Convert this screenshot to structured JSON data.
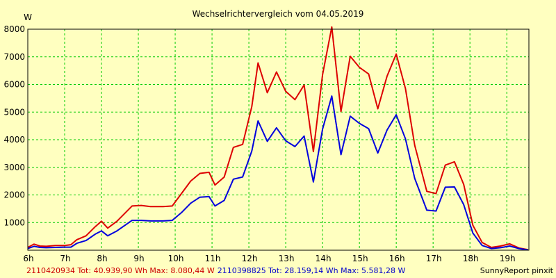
{
  "chart_data": {
    "type": "line",
    "title": "Wechselrichtervergleich vom 04.05.2019",
    "ylabel": "W",
    "ylim": [
      0,
      8000
    ],
    "y_ticks": [
      1000,
      2000,
      3000,
      4000,
      5000,
      6000,
      7000,
      8000
    ],
    "y_tick_labels": [
      "1000",
      "2000",
      "3000",
      "4000",
      "5000",
      "6000",
      "7000",
      "8000"
    ],
    "xlim": [
      6.0,
      19.6
    ],
    "x_ticks": [
      6,
      7,
      8,
      9,
      10,
      11,
      12,
      13,
      14,
      15,
      16,
      17,
      18,
      19
    ],
    "x_tick_labels": [
      "6h",
      "7h",
      "8h",
      "9h",
      "10h",
      "11h",
      "12h",
      "13h",
      "14h",
      "15h",
      "16h",
      "17h",
      "18h",
      "19h"
    ],
    "grid": true,
    "series": [
      {
        "name": "2110420934",
        "color": "#dd0000",
        "points": [
          [
            6.0,
            100
          ],
          [
            6.17,
            220
          ],
          [
            6.33,
            150
          ],
          [
            6.5,
            140
          ],
          [
            6.75,
            170
          ],
          [
            7.0,
            170
          ],
          [
            7.17,
            200
          ],
          [
            7.33,
            380
          ],
          [
            7.58,
            520
          ],
          [
            7.83,
            850
          ],
          [
            8.0,
            1050
          ],
          [
            8.17,
            800
          ],
          [
            8.42,
            1050
          ],
          [
            8.83,
            1600
          ],
          [
            9.08,
            1620
          ],
          [
            9.33,
            1580
          ],
          [
            9.67,
            1580
          ],
          [
            9.92,
            1600
          ],
          [
            10.17,
            2050
          ],
          [
            10.42,
            2500
          ],
          [
            10.67,
            2780
          ],
          [
            10.92,
            2820
          ],
          [
            11.08,
            2360
          ],
          [
            11.33,
            2650
          ],
          [
            11.58,
            3720
          ],
          [
            11.83,
            3830
          ],
          [
            12.08,
            5200
          ],
          [
            12.25,
            6780
          ],
          [
            12.5,
            5700
          ],
          [
            12.75,
            6450
          ],
          [
            13.0,
            5750
          ],
          [
            13.25,
            5450
          ],
          [
            13.5,
            5980
          ],
          [
            13.75,
            3570
          ],
          [
            14.0,
            6350
          ],
          [
            14.25,
            8080
          ],
          [
            14.5,
            5020
          ],
          [
            14.75,
            7020
          ],
          [
            15.0,
            6620
          ],
          [
            15.25,
            6380
          ],
          [
            15.5,
            5120
          ],
          [
            15.75,
            6300
          ],
          [
            16.0,
            7100
          ],
          [
            16.25,
            5850
          ],
          [
            16.5,
            3800
          ],
          [
            16.83,
            2130
          ],
          [
            17.08,
            2050
          ],
          [
            17.33,
            3080
          ],
          [
            17.58,
            3200
          ],
          [
            17.83,
            2380
          ],
          [
            18.08,
            900
          ],
          [
            18.33,
            280
          ],
          [
            18.58,
            100
          ],
          [
            18.83,
            150
          ],
          [
            19.08,
            230
          ],
          [
            19.33,
            80
          ],
          [
            19.58,
            20
          ]
        ]
      },
      {
        "name": "2110398825",
        "color": "#0000dd",
        "points": [
          [
            6.0,
            60
          ],
          [
            6.17,
            140
          ],
          [
            6.33,
            100
          ],
          [
            6.5,
            90
          ],
          [
            6.75,
            100
          ],
          [
            7.0,
            110
          ],
          [
            7.17,
            110
          ],
          [
            7.33,
            250
          ],
          [
            7.58,
            350
          ],
          [
            7.83,
            580
          ],
          [
            8.0,
            700
          ],
          [
            8.17,
            520
          ],
          [
            8.42,
            700
          ],
          [
            8.83,
            1080
          ],
          [
            9.08,
            1080
          ],
          [
            9.33,
            1060
          ],
          [
            9.67,
            1060
          ],
          [
            9.92,
            1080
          ],
          [
            10.17,
            1360
          ],
          [
            10.42,
            1700
          ],
          [
            10.67,
            1920
          ],
          [
            10.92,
            1940
          ],
          [
            11.08,
            1600
          ],
          [
            11.33,
            1800
          ],
          [
            11.58,
            2570
          ],
          [
            11.83,
            2650
          ],
          [
            12.08,
            3590
          ],
          [
            12.25,
            4680
          ],
          [
            12.5,
            3940
          ],
          [
            12.75,
            4430
          ],
          [
            13.0,
            3960
          ],
          [
            13.25,
            3750
          ],
          [
            13.5,
            4130
          ],
          [
            13.75,
            2470
          ],
          [
            14.0,
            4380
          ],
          [
            14.25,
            5581
          ],
          [
            14.5,
            3460
          ],
          [
            14.75,
            4850
          ],
          [
            15.0,
            4590
          ],
          [
            15.25,
            4400
          ],
          [
            15.5,
            3520
          ],
          [
            15.75,
            4350
          ],
          [
            16.0,
            4900
          ],
          [
            16.25,
            4030
          ],
          [
            16.5,
            2600
          ],
          [
            16.83,
            1450
          ],
          [
            17.08,
            1420
          ],
          [
            17.33,
            2280
          ],
          [
            17.58,
            2290
          ],
          [
            17.83,
            1650
          ],
          [
            18.08,
            620
          ],
          [
            18.33,
            170
          ],
          [
            18.58,
            60
          ],
          [
            18.83,
            90
          ],
          [
            19.08,
            150
          ],
          [
            19.33,
            60
          ],
          [
            19.58,
            10
          ]
        ]
      }
    ]
  },
  "footer": {
    "red_text": "2110420934 Tot: 40.939,90 Wh Max: 8.080,44 W",
    "blue_text": "2110398825 Tot: 28.159,14 Wh Max: 5.581,28 W",
    "brand": "SunnyReport pinxit"
  }
}
